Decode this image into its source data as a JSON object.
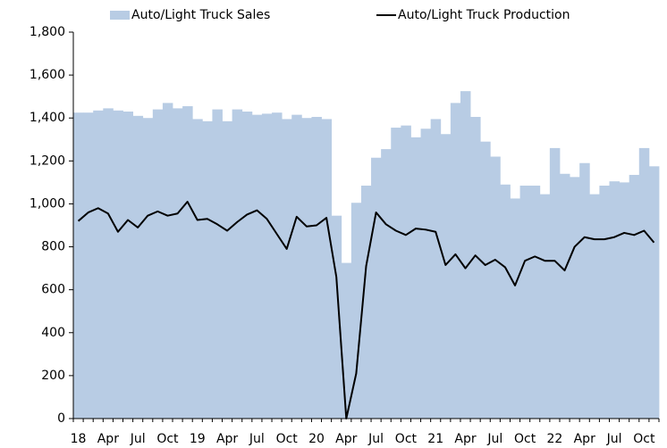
{
  "chart_data": {
    "type": "bar-line",
    "categories": [
      "18",
      null,
      null,
      "Apr",
      null,
      null,
      "Jul",
      null,
      null,
      "Oct",
      null,
      null,
      "19",
      null,
      null,
      "Apr",
      null,
      null,
      "Jul",
      null,
      null,
      "Oct",
      null,
      null,
      "20",
      null,
      null,
      "Apr",
      null,
      null,
      "Jul",
      null,
      null,
      "Oct",
      null,
      null,
      "21",
      null,
      null,
      "Apr",
      null,
      null,
      "Jul",
      null,
      null,
      "Oct",
      null,
      null,
      "22",
      null,
      null,
      "Apr",
      null,
      null,
      "Jul",
      null,
      null,
      "Oct",
      null
    ],
    "series": [
      {
        "name": "Auto/Light Truck Sales",
        "type": "bar",
        "color": "#b8cce4",
        "values": [
          1425,
          1425,
          1435,
          1445,
          1435,
          1430,
          1410,
          1400,
          1440,
          1470,
          1445,
          1455,
          1395,
          1385,
          1440,
          1385,
          1440,
          1430,
          1415,
          1420,
          1425,
          1395,
          1415,
          1400,
          1405,
          1395,
          945,
          725,
          1005,
          1085,
          1215,
          1255,
          1355,
          1365,
          1310,
          1350,
          1395,
          1325,
          1470,
          1525,
          1405,
          1290,
          1220,
          1090,
          1025,
          1085,
          1085,
          1045,
          1260,
          1140,
          1125,
          1190,
          1045,
          1085,
          1105,
          1100,
          1135,
          1260,
          1175
        ]
      },
      {
        "name": "Auto/Light Truck Production",
        "type": "line",
        "color": "#000000",
        "values": [
          920,
          960,
          980,
          955,
          870,
          925,
          890,
          945,
          965,
          945,
          955,
          1010,
          925,
          930,
          905,
          875,
          915,
          950,
          970,
          930,
          860,
          790,
          940,
          895,
          900,
          935,
          660,
          0,
          210,
          710,
          960,
          905,
          875,
          855,
          885,
          880,
          870,
          715,
          765,
          700,
          760,
          715,
          740,
          705,
          620,
          735,
          755,
          735,
          735,
          690,
          800,
          845,
          835,
          835,
          845,
          865,
          855,
          875,
          820
        ]
      }
    ],
    "ylim": [
      0,
      1800
    ],
    "yticks": [
      0,
      200,
      400,
      600,
      800,
      {
        "value": 1000,
        "label": "1,000"
      },
      {
        "value": 1200,
        "label": "1,200"
      },
      {
        "value": 1400,
        "label": "1,400"
      },
      {
        "value": 1600,
        "label": "1,600"
      },
      {
        "value": 1800,
        "label": "1,800"
      }
    ],
    "legend": "top"
  }
}
